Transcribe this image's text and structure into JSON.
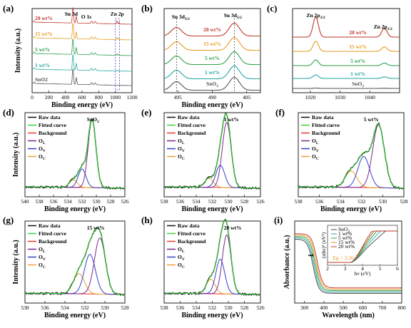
{
  "chart_data": [
    {
      "panel": "(a)",
      "type": "line",
      "xlabel": "Binding energy (eV)",
      "ylabel": "Intensity (a.u.)",
      "xlim": [
        0,
        1200
      ],
      "xticks": [
        "0",
        "200",
        "400",
        "600",
        "800",
        "1000",
        "1200"
      ],
      "annotations": [
        "Sn 3d",
        "O 1s",
        "Zn 2p"
      ],
      "series": [
        {
          "name": "20 wt%",
          "color": "#c0392b"
        },
        {
          "name": "15 wt%",
          "color": "#e69a1f"
        },
        {
          "name": "5 wt%",
          "color": "#2e9f4a"
        },
        {
          "name": "1 wt%",
          "color": "#26a6a4"
        },
        {
          "name": "SnO2",
          "color": "#555555"
        }
      ],
      "peaks": [
        {
          "label": "Sn 3d",
          "x": 487
        },
        {
          "label": "O 1s",
          "x": 531
        },
        {
          "label": "Zn 2p",
          "x": 1022
        }
      ]
    },
    {
      "panel": "(b)",
      "type": "line",
      "xlabel": "Binding energy (eV)",
      "xlim": [
        497,
        483
      ],
      "xticks": [
        "485",
        "490",
        "495"
      ],
      "annotations": [
        "Sn 3d5/2",
        "Sn 3d3/2"
      ],
      "series": [
        {
          "name": "20 wt%",
          "color": "#c0392b"
        },
        {
          "name": "15 wt%",
          "color": "#e69a1f"
        },
        {
          "name": "5 wt%",
          "color": "#2e9f4a"
        },
        {
          "name": "1 wt%",
          "color": "#26a6a4"
        },
        {
          "name": "SnO2",
          "color": "#555555"
        }
      ],
      "peaks": [
        486.8,
        495.2
      ]
    },
    {
      "panel": "(c)",
      "type": "line",
      "xlim": [
        1014,
        1050
      ],
      "xticks": [
        "1020",
        "1030",
        "1040"
      ],
      "annotations": [
        "Zn 2p3/2",
        "Zn 2p1/2"
      ],
      "series": [
        {
          "name": "20 wt%",
          "color": "#c0392b"
        },
        {
          "name": "15 wt%",
          "color": "#e69a1f"
        },
        {
          "name": "5 wt%",
          "color": "#2e9f4a"
        },
        {
          "name": "1 wt%",
          "color": "#26a6a4"
        },
        {
          "name": "SnO2",
          "color": "#555555"
        }
      ],
      "peaks": [
        1021.8,
        1044.9
      ]
    },
    {
      "panel": "(d)",
      "type": "line",
      "sample": "SnO2",
      "xlabel": "Binding energy (eV)",
      "ylabel": "Intensity (a.u.)",
      "xlim": [
        540,
        526
      ],
      "xticks": [
        "540",
        "538",
        "536",
        "534",
        "532",
        "530",
        "528",
        "526"
      ],
      "components": [
        {
          "name": "Raw data",
          "color": "#111111"
        },
        {
          "name": "Fitted curve",
          "color": "#39d13b"
        },
        {
          "name": "Background",
          "color": "#e53b2e"
        },
        {
          "name": "OL",
          "color": "#7b2a8c"
        },
        {
          "name": "OV",
          "color": "#3340c8"
        },
        {
          "name": "OC",
          "color": "#f0a030"
        }
      ],
      "peaks": {
        "OL": {
          "center": 530.6,
          "height": 0.92
        },
        "OV": {
          "center": 532.0,
          "height": 0.25
        },
        "OC": {
          "center": 533.2,
          "height": 0.1
        }
      }
    },
    {
      "panel": "(e)",
      "type": "line",
      "sample": "1 wt%",
      "xlabel": "Binding energy (eV)",
      "xlim": [
        538,
        526
      ],
      "xticks": [
        "538",
        "536",
        "534",
        "532",
        "530",
        "528",
        "526"
      ],
      "components": [
        {
          "name": "Raw data",
          "color": "#111111"
        },
        {
          "name": "Fitted curve",
          "color": "#39d13b"
        },
        {
          "name": "Background",
          "color": "#e53b2e"
        },
        {
          "name": "OL",
          "color": "#7b2a8c"
        },
        {
          "name": "OV",
          "color": "#3340c8"
        },
        {
          "name": "OC",
          "color": "#f0a030"
        }
      ],
      "peaks": {
        "OL": {
          "center": 530.2,
          "height": 0.88
        },
        "OV": {
          "center": 531.0,
          "height": 0.3
        },
        "OC": {
          "center": 532.4,
          "height": 0.12
        }
      }
    },
    {
      "panel": "(f)",
      "type": "line",
      "sample": "5 wt%",
      "xlabel": "Binding energy (eV)",
      "xlim": [
        538,
        528
      ],
      "xticks": [
        "538",
        "536",
        "534",
        "532",
        "530",
        "528"
      ],
      "components": [
        {
          "name": "Raw data",
          "color": "#111111"
        },
        {
          "name": "Fitted curve",
          "color": "#39d13b"
        },
        {
          "name": "Background",
          "color": "#e53b2e"
        },
        {
          "name": "OL",
          "color": "#7b2a8c"
        },
        {
          "name": "OV",
          "color": "#3340c8"
        },
        {
          "name": "OC",
          "color": "#f0a030"
        }
      ],
      "peaks": {
        "OL": {
          "center": 530.4,
          "height": 0.85
        },
        "OV": {
          "center": 531.8,
          "height": 0.42
        },
        "OC": {
          "center": 533.0,
          "height": 0.22
        }
      }
    },
    {
      "panel": "(g)",
      "type": "line",
      "sample": "15 wt%",
      "xlabel": "Binding energy (eV)",
      "ylabel": "Intensity (a.u.)",
      "xlim": [
        538,
        528
      ],
      "xticks": [
        "538",
        "536",
        "534",
        "532",
        "530",
        "528"
      ],
      "components": [
        {
          "name": "Raw data",
          "color": "#111111"
        },
        {
          "name": "Fitted curve",
          "color": "#39d13b"
        },
        {
          "name": "Background",
          "color": "#e53b2e"
        },
        {
          "name": "OL",
          "color": "#7b2a8c"
        },
        {
          "name": "OV",
          "color": "#3340c8"
        },
        {
          "name": "OC",
          "color": "#f0a030"
        }
      ],
      "peaks": {
        "OL": {
          "center": 530.5,
          "height": 0.78
        },
        "OV": {
          "center": 531.5,
          "height": 0.55
        },
        "OC": {
          "center": 532.6,
          "height": 0.28
        }
      }
    },
    {
      "panel": "(h)",
      "type": "line",
      "sample": "20 wt%",
      "xlabel": "Binding energy (eV)",
      "xlim": [
        538,
        526
      ],
      "xticks": [
        "538",
        "536",
        "534",
        "532",
        "530",
        "528",
        "526"
      ],
      "components": [
        {
          "name": "Raw data",
          "color": "#111111"
        },
        {
          "name": "Fitted curve",
          "color": "#39d13b"
        },
        {
          "name": "Background",
          "color": "#e53b2e"
        },
        {
          "name": "OL",
          "color": "#7b2a8c"
        },
        {
          "name": "OV",
          "color": "#3340c8"
        },
        {
          "name": "OC",
          "color": "#f0a030"
        }
      ],
      "peaks": {
        "OL": {
          "center": 530.2,
          "height": 0.82
        },
        "OV": {
          "center": 531.0,
          "height": 0.48
        },
        "OC": {
          "center": 532.2,
          "height": 0.2
        }
      }
    },
    {
      "panel": "(i)",
      "type": "line",
      "xlabel": "Wavelength (nm)",
      "ylabel": "Absorbance (a.u.)",
      "xlim": [
        250,
        800
      ],
      "xticks": [
        "300",
        "400",
        "500",
        "600",
        "700",
        "800"
      ],
      "series": [
        {
          "name": "SnO2",
          "color": "#444444"
        },
        {
          "name": "1 wt%",
          "color": "#26a6a4"
        },
        {
          "name": "5 wt%",
          "color": "#2e9f4a"
        },
        {
          "name": "15 wt%",
          "color": "#e69a1f"
        },
        {
          "name": "20 wt%",
          "color": "#c0392b"
        }
      ],
      "inset": {
        "xlabel": "hν (eV)",
        "ylabel": "(αhν)² (eV²)",
        "xticks": [
          "2",
          "3",
          "4",
          "5",
          "6"
        ],
        "annotation": "Eg = 3.56"
      }
    }
  ]
}
